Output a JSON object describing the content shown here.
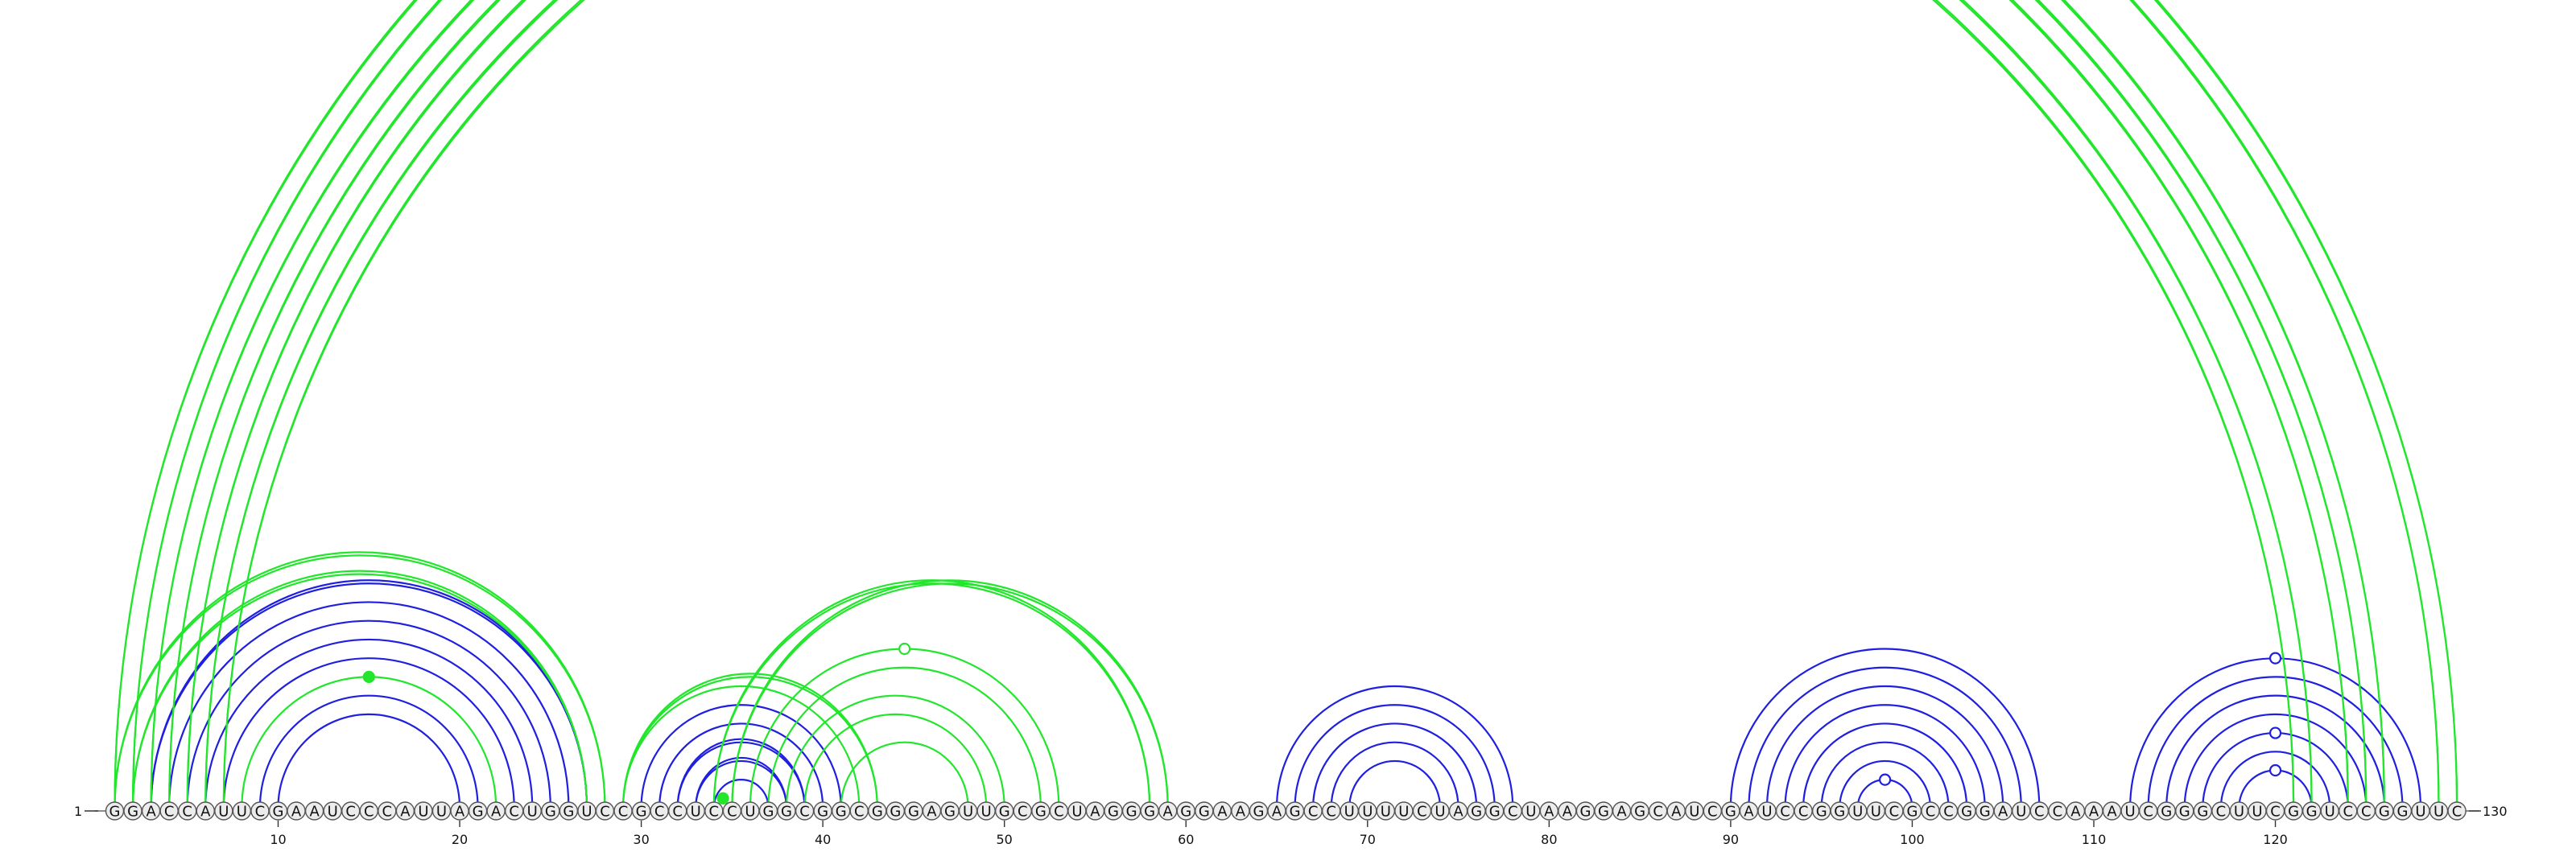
{
  "diagram": {
    "sequence": "GGACCAUUCGAAUCCCAUUAGACUGGUCCGCCUCCUGGCGGCGGGAGUUGCGCUAGGGAGGAAGAGCCUUUUCUAGGCUAAGGAGCAUCGAUCCGGUUCGCCGGAUCCAAAUCGGGCUUCGGUCCGGUUC",
    "start_label": "1",
    "end_label": "130",
    "ticks": [
      "10",
      "20",
      "30",
      "40",
      "50",
      "60",
      "70",
      "80",
      "90",
      "100",
      "110",
      "120"
    ],
    "colors": {
      "green": "#22e62b",
      "blue": "#1f1fe0",
      "circle_fill": "#ececec",
      "circle_stroke": "#555555"
    },
    "green_arcs": [
      [
        1,
        130,
        2
      ],
      [
        2,
        129,
        2
      ],
      [
        3,
        126,
        2
      ],
      [
        4,
        125,
        2
      ],
      [
        5,
        124,
        2
      ],
      [
        6,
        122,
        2
      ],
      [
        7,
        121,
        2
      ],
      [
        1,
        28,
        2
      ],
      [
        2,
        27,
        2
      ],
      [
        8,
        22,
        1
      ],
      [
        29,
        43,
        2
      ],
      [
        29,
        42,
        1
      ],
      [
        34,
        58,
        2
      ],
      [
        35,
        59,
        2
      ],
      [
        36,
        53,
        1
      ],
      [
        37,
        52,
        1
      ],
      [
        38,
        50,
        1
      ],
      [
        39,
        49,
        1
      ],
      [
        41,
        48,
        1
      ]
    ],
    "blue_arcs": [
      [
        3,
        27,
        2
      ],
      [
        4,
        26,
        1
      ],
      [
        5,
        25,
        1
      ],
      [
        6,
        24,
        1
      ],
      [
        7,
        23,
        1
      ],
      [
        9,
        21,
        1
      ],
      [
        10,
        20,
        1
      ],
      [
        30,
        41,
        1
      ],
      [
        31,
        40,
        1
      ],
      [
        32,
        39,
        2
      ],
      [
        33,
        38,
        2
      ],
      [
        34,
        37,
        1
      ],
      [
        65,
        78,
        1
      ],
      [
        66,
        77,
        1
      ],
      [
        67,
        76,
        1
      ],
      [
        68,
        75,
        1
      ],
      [
        69,
        74,
        1
      ],
      [
        90,
        107,
        1
      ],
      [
        91,
        106,
        1
      ],
      [
        92,
        105,
        1
      ],
      [
        93,
        104,
        1
      ],
      [
        94,
        103,
        1
      ],
      [
        95,
        102,
        1
      ],
      [
        96,
        101,
        1
      ],
      [
        97,
        100,
        1
      ],
      [
        112,
        128,
        1
      ],
      [
        113,
        127,
        1
      ],
      [
        114,
        126,
        1
      ],
      [
        115,
        125,
        1
      ],
      [
        116,
        124,
        1
      ],
      [
        117,
        123,
        1
      ],
      [
        118,
        122,
        1
      ]
    ],
    "markers": [
      {
        "kind": "open",
        "color": "green",
        "pair": [
          1,
          130
        ]
      },
      {
        "kind": "filled",
        "color": "green",
        "pair": [
          8,
          22
        ]
      },
      {
        "kind": "open",
        "color": "green",
        "pair": [
          36,
          53
        ]
      },
      {
        "kind": "filled",
        "color": "green",
        "pair": [
          34,
          35
        ]
      },
      {
        "kind": "open",
        "color": "blue",
        "pair": [
          97,
          100
        ]
      },
      {
        "kind": "open",
        "color": "blue",
        "pair": [
          112,
          128
        ]
      },
      {
        "kind": "open",
        "color": "blue",
        "pair": [
          116,
          124
        ]
      },
      {
        "kind": "open",
        "color": "blue",
        "pair": [
          118,
          122
        ]
      }
    ]
  }
}
